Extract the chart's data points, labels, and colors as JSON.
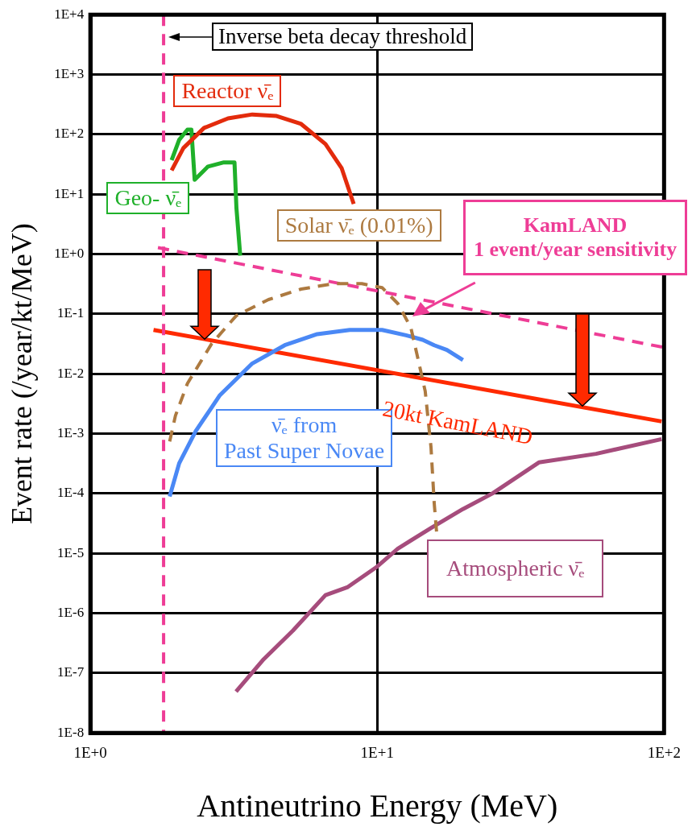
{
  "chart_data": {
    "type": "line",
    "xlabel": "Antineutrino Energy (MeV)",
    "ylabel": "Event rate (/year/kt/MeV)",
    "log": "xy",
    "xlim": [
      1,
      100
    ],
    "ylim": [
      1e-08,
      10000
    ],
    "xticks": [
      {
        "value": 1,
        "label": "1E+0"
      },
      {
        "value": 10,
        "label": "1E+1"
      },
      {
        "value": 100,
        "label": "1E+2"
      }
    ],
    "yticks": [
      {
        "value": 1e-08,
        "label": "1E-8"
      },
      {
        "value": 1e-07,
        "label": "1E-7"
      },
      {
        "value": 1e-06,
        "label": "1E-6"
      },
      {
        "value": 1e-05,
        "label": "1E-5"
      },
      {
        "value": 0.0001,
        "label": "1E-4"
      },
      {
        "value": 0.001,
        "label": "1E-3"
      },
      {
        "value": 0.01,
        "label": "1E-2"
      },
      {
        "value": 0.1,
        "label": "1E-1"
      },
      {
        "value": 1,
        "label": "1E+0"
      },
      {
        "value": 10,
        "label": "1E+1"
      },
      {
        "value": 100,
        "label": "1E+2"
      },
      {
        "value": 1000,
        "label": "1E+3"
      },
      {
        "value": 10000,
        "label": "1E+4"
      }
    ],
    "grid": true,
    "legend": false,
    "marker": "none",
    "ref_lines": [
      {
        "axis": "x",
        "value": 1.8,
        "label": "Inverse beta decay threshold",
        "color": "#ee3d96",
        "line_style": "dashed"
      }
    ],
    "series": [
      {
        "name": "Reactor ν̄ₑ",
        "color": "#e32b0c",
        "line_style": "solid",
        "x": [
          1.92,
          2.11,
          2.49,
          3.02,
          3.67,
          4.46,
          5.43,
          6.6,
          7.51,
          8.28
        ],
        "values": [
          25,
          59,
          128,
          185,
          215,
          203,
          149,
          69,
          27.5,
          6.9
        ]
      },
      {
        "name": "Geo- ν̄ₑ",
        "color": "#1fb02a",
        "line_style": "solid",
        "x": [
          1.92,
          2.04,
          2.18,
          2.25,
          2.31,
          2.57,
          2.92,
          3.18,
          3.23,
          3.33
        ],
        "values": [
          37,
          81,
          120,
          120,
          17.4,
          29,
          34,
          34,
          5.9,
          0.94
        ]
      },
      {
        "name": "Solar ν̄ₑ (0.01%)",
        "color": "#ad7a40",
        "line_style": "dashed",
        "x": [
          1.89,
          1.98,
          2.18,
          2.65,
          3.23,
          4.18,
          5.43,
          7.04,
          8.84,
          10.4,
          11.8,
          13.1,
          13.9,
          14.7,
          15.4,
          15.8,
          16.1
        ],
        "values": [
          0.00074,
          0.002,
          0.0069,
          0.032,
          0.094,
          0.174,
          0.26,
          0.32,
          0.32,
          0.275,
          0.149,
          0.059,
          0.017,
          0.0051,
          0.00059,
          6.9e-05,
          2.3e-05
        ]
      },
      {
        "name": "ν̄ₑ from Past Super Novae",
        "color": "#4a88f5",
        "line_style": "solid",
        "x": [
          1.89,
          2.04,
          2.33,
          2.83,
          3.67,
          4.76,
          6.18,
          8.02,
          10.4,
          12.6,
          14.4,
          15.8,
          17.5,
          19.9
        ],
        "values": [
          8.9e-05,
          0.00032,
          0.0011,
          0.0044,
          0.0149,
          0.03,
          0.046,
          0.054,
          0.054,
          0.044,
          0.037,
          0.03,
          0.025,
          0.017
        ]
      },
      {
        "name": "Atmospheric ν̄ₑ",
        "color": "#a64c7c",
        "line_style": "solid",
        "x": [
          3.22,
          4.02,
          5.08,
          6.6,
          7.86,
          9.9,
          11.8,
          15.5,
          19.9,
          25.2,
          36.6,
          57.9,
          98
        ],
        "values": [
          4.9e-08,
          1.7e-07,
          5.1e-07,
          2e-06,
          2.7e-06,
          5.8e-06,
          1.2e-05,
          2.7e-05,
          5.5e-05,
          0.0001,
          0.00033,
          0.00046,
          0.00081
        ]
      },
      {
        "name": "20kt KamLAND",
        "color": "#ff2a00",
        "line_style": "solid",
        "x": [
          1.66,
          98
        ],
        "values": [
          0.054,
          0.0016
        ]
      },
      {
        "name": "KamLAND 1 event/year sensitivity",
        "color": "#ee3d96",
        "line_style": "dashed",
        "x": [
          1.72,
          100
        ],
        "values": [
          1.28,
          0.0275
        ]
      }
    ]
  }
}
